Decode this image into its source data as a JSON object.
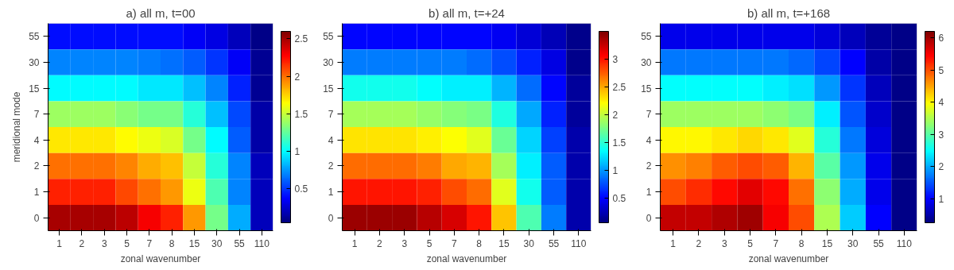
{
  "chart_data": [
    {
      "type": "heatmap",
      "title": "a) all m, t=00",
      "xlabel": "zonal wavenumber",
      "ylabel": "meridional mode",
      "categories": [
        "1",
        "2",
        "3",
        "5",
        "7",
        "8",
        "15",
        "30",
        "55",
        "110"
      ],
      "y_categories": [
        "55",
        "30",
        "15",
        "7",
        "4",
        "2",
        "1",
        "0"
      ],
      "clim": [
        0.05,
        2.6
      ],
      "cticks": [
        0.5,
        1,
        1.5,
        2,
        2.5
      ],
      "cells": [
        [
          0.4,
          0.4,
          0.4,
          0.4,
          0.4,
          0.4,
          0.35,
          0.3,
          0.2,
          0.07
        ],
        [
          0.7,
          0.7,
          0.7,
          0.7,
          0.68,
          0.65,
          0.6,
          0.5,
          0.35,
          0.1
        ],
        [
          1.0,
          1.0,
          1.0,
          1.0,
          0.95,
          0.95,
          0.85,
          0.7,
          0.45,
          0.1
        ],
        [
          1.4,
          1.4,
          1.4,
          1.35,
          1.3,
          1.3,
          1.1,
          0.85,
          0.55,
          0.15
        ],
        [
          1.7,
          1.7,
          1.7,
          1.65,
          1.6,
          1.55,
          1.3,
          1.0,
          0.6,
          0.15
        ],
        [
          2.0,
          2.0,
          2.0,
          1.95,
          1.85,
          1.8,
          1.5,
          1.1,
          0.7,
          0.2
        ],
        [
          2.2,
          2.2,
          2.2,
          2.1,
          2.0,
          1.9,
          1.6,
          1.2,
          0.7,
          0.2
        ],
        [
          2.5,
          2.5,
          2.5,
          2.45,
          2.3,
          2.2,
          1.9,
          1.3,
          0.8,
          0.2
        ]
      ]
    },
    {
      "type": "heatmap",
      "title": "b) all m, t=+24",
      "xlabel": "zonal wavenumber",
      "categories": [
        "1",
        "2",
        "3",
        "5",
        "7",
        "8",
        "15",
        "30",
        "55",
        "110"
      ],
      "y_categories": [
        "55",
        "30",
        "15",
        "7",
        "4",
        "2",
        "1",
        "0"
      ],
      "clim": [
        0.05,
        3.5
      ],
      "cticks": [
        0.5,
        1,
        1.5,
        2,
        2.5,
        3
      ],
      "cells": [
        [
          0.5,
          0.5,
          0.5,
          0.5,
          0.5,
          0.5,
          0.45,
          0.35,
          0.25,
          0.1
        ],
        [
          0.9,
          0.9,
          0.9,
          0.9,
          0.9,
          0.85,
          0.75,
          0.6,
          0.4,
          0.1
        ],
        [
          1.4,
          1.4,
          1.4,
          1.35,
          1.3,
          1.3,
          1.1,
          0.85,
          0.5,
          0.15
        ],
        [
          1.9,
          1.9,
          1.9,
          1.85,
          1.8,
          1.75,
          1.45,
          1.05,
          0.6,
          0.15
        ],
        [
          2.3,
          2.3,
          2.3,
          2.25,
          2.2,
          2.1,
          1.7,
          1.2,
          0.7,
          0.2
        ],
        [
          2.7,
          2.7,
          2.7,
          2.65,
          2.5,
          2.45,
          1.9,
          1.3,
          0.8,
          0.2
        ],
        [
          3.0,
          3.0,
          3.0,
          2.95,
          2.8,
          2.7,
          2.1,
          1.4,
          0.8,
          0.2
        ],
        [
          3.4,
          3.4,
          3.4,
          3.3,
          3.2,
          3.0,
          2.4,
          1.6,
          0.9,
          0.2
        ]
      ]
    },
    {
      "type": "heatmap",
      "title": "b) all m, t=+168",
      "xlabel": "zonal wavenumber",
      "categories": [
        "1",
        "2",
        "3",
        "5",
        "7",
        "8",
        "15",
        "30",
        "55",
        "110"
      ],
      "y_categories": [
        "55",
        "30",
        "15",
        "7",
        "4",
        "2",
        "1",
        "0"
      ],
      "clim": [
        0.25,
        6.2
      ],
      "cticks": [
        1,
        2,
        3,
        4,
        5,
        6
      ],
      "cells": [
        [
          0.9,
          0.9,
          0.9,
          0.9,
          0.9,
          0.9,
          0.8,
          0.6,
          0.4,
          0.3
        ],
        [
          1.7,
          1.7,
          1.7,
          1.7,
          1.7,
          1.6,
          1.4,
          1.0,
          0.5,
          0.3
        ],
        [
          2.5,
          2.5,
          2.5,
          2.5,
          2.4,
          2.3,
          1.9,
          1.3,
          0.6,
          0.3
        ],
        [
          3.4,
          3.4,
          3.4,
          3.4,
          3.3,
          3.2,
          2.4,
          1.5,
          0.7,
          0.3
        ],
        [
          4.0,
          4.0,
          4.1,
          4.2,
          4.1,
          3.8,
          2.7,
          1.7,
          0.8,
          0.3
        ],
        [
          4.6,
          4.7,
          4.9,
          5.0,
          4.9,
          4.4,
          3.0,
          1.9,
          0.9,
          0.3
        ],
        [
          5.0,
          5.2,
          5.4,
          5.6,
          5.4,
          4.8,
          3.3,
          2.0,
          0.9,
          0.3
        ],
        [
          5.8,
          5.8,
          5.9,
          6.0,
          5.5,
          5.0,
          3.5,
          2.2,
          1.0,
          0.3
        ]
      ]
    }
  ]
}
